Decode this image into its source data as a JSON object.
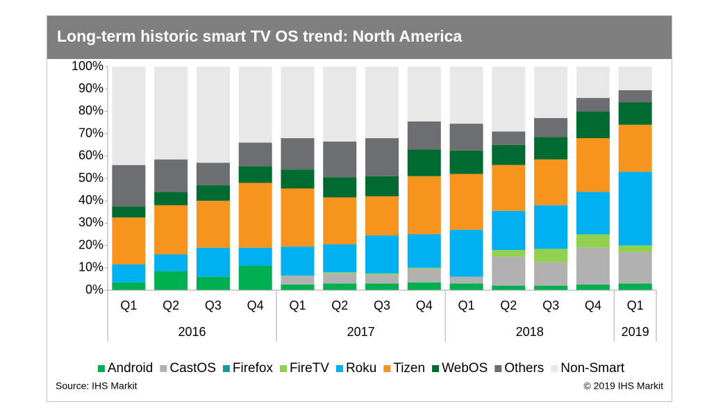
{
  "chart_data": {
    "type": "stacked-bar",
    "title": "Long-term historic smart TV OS trend: North America",
    "categories": [
      "Q1",
      "Q2",
      "Q3",
      "Q4",
      "Q1",
      "Q2",
      "Q3",
      "Q4",
      "Q1",
      "Q2",
      "Q3",
      "Q4",
      "Q1"
    ],
    "groups": [
      {
        "name": "2016",
        "count": 4
      },
      {
        "name": "2017",
        "count": 4
      },
      {
        "name": "2018",
        "count": 4
      },
      {
        "name": "2019",
        "count": 1
      }
    ],
    "series": [
      {
        "name": "Android",
        "color": "#00b050",
        "values": [
          3.5,
          8.5,
          6,
          11,
          2.5,
          3,
          3,
          3.5,
          3,
          2,
          2,
          2.5,
          3
        ]
      },
      {
        "name": "CastOS",
        "color": "#b1b1b1",
        "values": [
          0,
          0,
          0,
          0,
          4,
          4.5,
          4,
          6,
          3,
          13,
          10.5,
          16.5,
          14
        ]
      },
      {
        "name": "Firefox",
        "color": "#1a9a9a",
        "values": [
          0,
          0,
          0,
          0,
          0,
          0,
          0,
          0,
          0,
          0,
          0,
          0,
          0
        ]
      },
      {
        "name": "FireTV",
        "color": "#92d050",
        "values": [
          0,
          0,
          0,
          0,
          0,
          0.5,
          0.5,
          0.5,
          0,
          3,
          6,
          6,
          3
        ]
      },
      {
        "name": "Roku",
        "color": "#00b0f0",
        "values": [
          8,
          7.5,
          13,
          8,
          13,
          12.5,
          17,
          15,
          21,
          17.5,
          19.5,
          19,
          33
        ]
      },
      {
        "name": "Tizen",
        "color": "#f7941d",
        "values": [
          21,
          22,
          21,
          29,
          26,
          21,
          17.5,
          26,
          25,
          20.5,
          20.5,
          24,
          21
        ]
      },
      {
        "name": "WebOS",
        "color": "#006b30",
        "values": [
          5,
          6,
          7,
          7.5,
          8.5,
          9,
          9,
          12,
          10.5,
          9,
          10,
          12,
          10
        ]
      },
      {
        "name": "Others",
        "color": "#6d6e71",
        "values": [
          18.5,
          14.5,
          10,
          10.5,
          14,
          16,
          17,
          12.5,
          12,
          6,
          8.5,
          6,
          5.5
        ]
      },
      {
        "name": "Non-Smart",
        "color": "#e8e8e8",
        "values": [
          44,
          41.5,
          43,
          34,
          32,
          33.5,
          32,
          24.5,
          25.5,
          29,
          23,
          14,
          10.5
        ]
      }
    ],
    "ylim": [
      0,
      100
    ],
    "yticks": [
      {
        "value": 0,
        "label": "0%"
      },
      {
        "value": 10,
        "label": "10%"
      },
      {
        "value": 20,
        "label": "20%"
      },
      {
        "value": 30,
        "label": "30%"
      },
      {
        "value": 40,
        "label": "40%"
      },
      {
        "value": 50,
        "label": "50%"
      },
      {
        "value": 60,
        "label": "60%"
      },
      {
        "value": 70,
        "label": "70%"
      },
      {
        "value": 80,
        "label": "80%"
      },
      {
        "value": 90,
        "label": "90%"
      },
      {
        "value": 100,
        "label": "100%"
      }
    ],
    "grid": false,
    "legend": "bottom",
    "source": "Source: IHS Markit",
    "copyright": "© 2019 IHS Markit"
  }
}
